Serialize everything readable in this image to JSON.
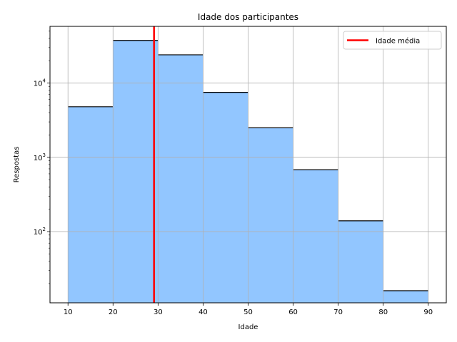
{
  "chart_data": {
    "type": "bar",
    "title": "Idade dos participantes",
    "xlabel": "Idade",
    "ylabel": "Respostas",
    "xlim": [
      6,
      94
    ],
    "ylim": [
      11,
      58000
    ],
    "yscale": "log",
    "grid": true,
    "legend_position": "top-right",
    "bins": [
      {
        "x0": 10,
        "x1": 20,
        "count": 4800
      },
      {
        "x0": 20,
        "x1": 30,
        "count": 37500
      },
      {
        "x0": 30,
        "x1": 40,
        "count": 24000
      },
      {
        "x0": 40,
        "x1": 50,
        "count": 7500
      },
      {
        "x0": 50,
        "x1": 60,
        "count": 2500
      },
      {
        "x0": 60,
        "x1": 70,
        "count": 680
      },
      {
        "x0": 70,
        "x1": 80,
        "count": 140
      },
      {
        "x0": 80,
        "x1": 90,
        "count": 16
      }
    ],
    "mean_line": {
      "x": 29.1,
      "label": "Idade média",
      "color": "#ff0000"
    },
    "bar_color": "#92c6ff",
    "bar_edge_color": "#000000",
    "x_ticks": [
      "10",
      "20",
      "30",
      "40",
      "50",
      "60",
      "70",
      "80",
      "90"
    ],
    "y_ticks": [
      {
        "base": "10",
        "exp": "2"
      },
      {
        "base": "10",
        "exp": "3"
      },
      {
        "base": "10",
        "exp": "4"
      }
    ]
  }
}
